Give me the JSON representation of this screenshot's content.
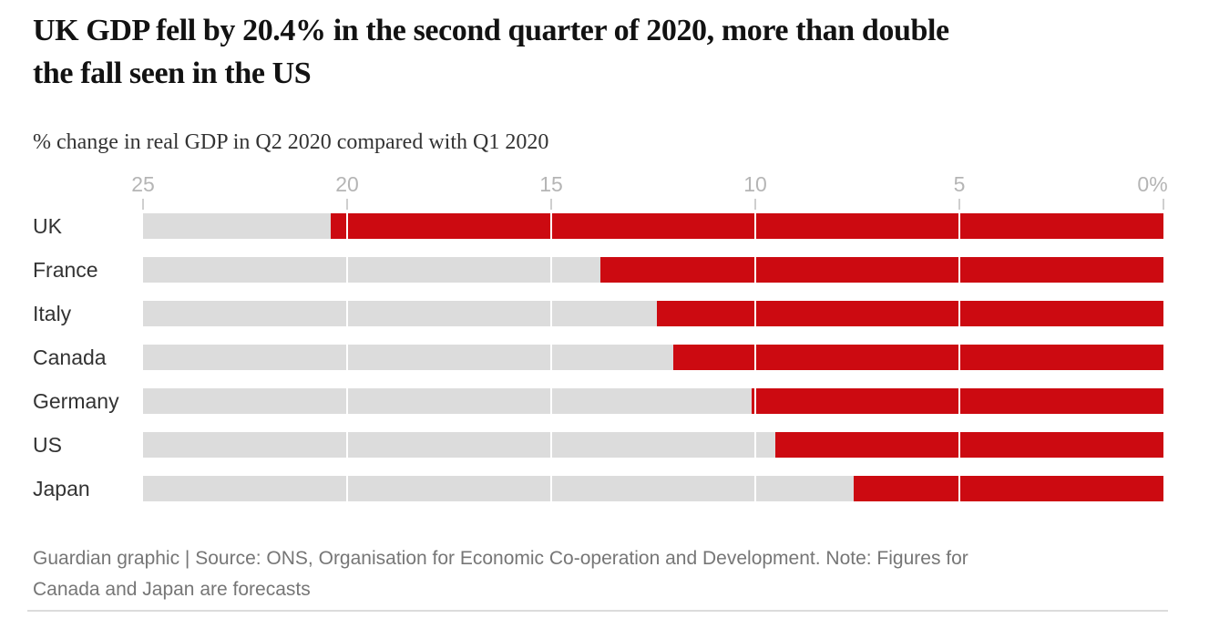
{
  "header": {
    "title": "UK GDP fell by 20.4% in the second quarter of 2020, more than double the fall seen in the US",
    "title_lines": [
      "UK GDP fell by 20.4% in the second quarter of 2020, more than double",
      "the fall seen in the US"
    ],
    "subtitle": "% change in real GDP in Q2 2020 compared with Q1 2020"
  },
  "chart_data": {
    "type": "bar",
    "orientation": "horizontal",
    "note": "bars grow leftward from 0%; values are the magnitude of the GDP fall in Q2 2020 vs Q1 2020",
    "title": "UK GDP fell by 20.4% in the second quarter of 2020, more than double the fall seen in the US",
    "subtitle": "% change in real GDP in Q2 2020 compared with Q1 2020",
    "categories": [
      "UK",
      "France",
      "Italy",
      "Canada",
      "Germany",
      "US",
      "Japan"
    ],
    "values": [
      20.4,
      13.8,
      12.4,
      12.0,
      10.1,
      9.5,
      7.6
    ],
    "axis": {
      "min": 0,
      "max": 25,
      "direction": "reversed-left-to-right",
      "ticks": [
        25,
        20,
        15,
        10,
        5,
        0
      ],
      "tick_labels": [
        "25",
        "20",
        "15",
        "10",
        "5",
        "0%"
      ],
      "gridline_ticks": [
        20,
        15,
        10,
        5
      ],
      "grid": true
    },
    "legend": "none",
    "bar_color": "#cc0a11",
    "track_color": "#dcdcdc"
  },
  "footer": {
    "text": "Guardian graphic | Source: ONS, Organisation for Economic Co-operation and Development. Note: Figures for Canada and Japan are forecasts",
    "lines": [
      "Guardian graphic | Source: ONS, Organisation for Economic Co-operation and Development. Note: Figures for",
      "Canada and Japan are forecasts"
    ]
  },
  "colors": {
    "headline": "#121212",
    "subtitle": "#333333",
    "axis_label": "#b5b5b5",
    "row_label": "#333333",
    "bar": "#cc0a11",
    "track": "#dcdcdc",
    "footer": "#767676",
    "divider": "#dcdcdc"
  }
}
